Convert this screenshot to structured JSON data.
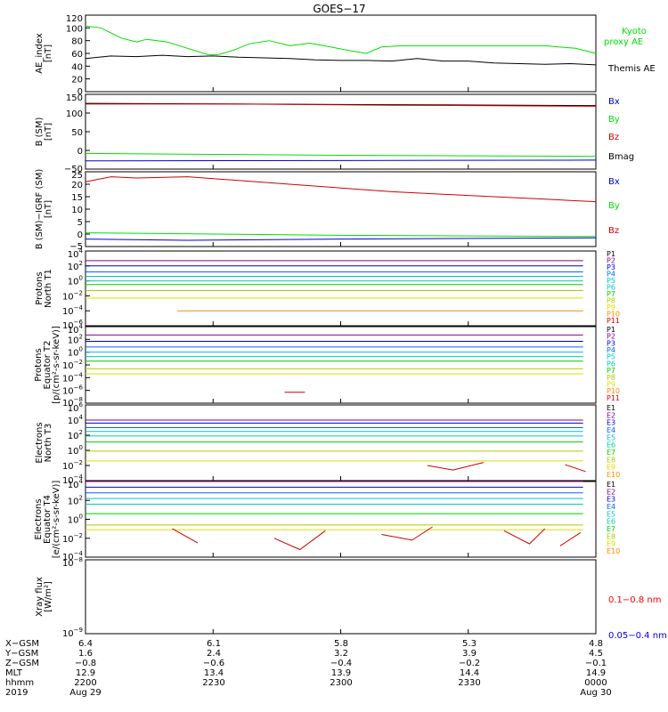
{
  "title": "GOES−17",
  "colors": {
    "black": "#000000",
    "green": "#00e000",
    "blue": "#0000d0",
    "red": "#d00000",
    "kyoto": "#00e000",
    "levels": [
      "#000000",
      "#880088",
      "#0000cc",
      "#0066ff",
      "#00bbdd",
      "#00ccaa",
      "#00cc00",
      "#aacc00",
      "#dddd00",
      "#ff8800",
      "#dd0000"
    ],
    "xray_long": "#ff0000",
    "xray_short": "#0000dd"
  },
  "panels": [
    {
      "id": "ae",
      "ylabel": [
        "AE_index",
        "[nT]"
      ],
      "ticks": [
        "120",
        "100",
        "80",
        "60",
        "40",
        "20",
        "0"
      ],
      "legend": [
        {
          "text": "Kyoto",
          "color": "#00e000"
        },
        {
          "text": "proxy AE",
          "color": "#00e000"
        },
        {
          "text": "Themis AE",
          "color": "#000000"
        }
      ]
    },
    {
      "id": "bsm",
      "ylabel": [
        "B (SM)",
        "[nT]"
      ],
      "ticks": [
        "150",
        "100",
        "50",
        "0",
        "−50"
      ],
      "legend": [
        {
          "text": "Bx",
          "color": "#0000d0"
        },
        {
          "text": "By",
          "color": "#00e000"
        },
        {
          "text": "Bz",
          "color": "#d00000"
        },
        {
          "text": "Bmag",
          "color": "#000000"
        }
      ]
    },
    {
      "id": "bigrf",
      "ylabel": [
        "B (SM)−IGRF (SM)",
        "[nT]"
      ],
      "ticks": [
        "25",
        "20",
        "15",
        "10",
        "5",
        "0",
        "−5"
      ],
      "legend": [
        {
          "text": "Bx",
          "color": "#0000d0"
        },
        {
          "text": "By",
          "color": "#00e000"
        },
        {
          "text": "Bz",
          "color": "#d00000"
        }
      ]
    },
    {
      "id": "pt1",
      "ylabel": [
        "Protons",
        "North T1"
      ],
      "ticks": [
        "10^4",
        "10^2",
        "10^0",
        "10^-2",
        "10^-4",
        "10^-6"
      ],
      "legend": [
        "P1",
        "P2",
        "P3",
        "P4",
        "P5",
        "P6",
        "P7",
        "P8",
        "P9",
        "P10",
        "P11"
      ]
    },
    {
      "id": "pt2",
      "ylabel": [
        "Protons",
        "Equator T2",
        "[p/(cm²-s-sr-keV)]"
      ],
      "ticks": [
        "10^4",
        "10^2",
        "10^0",
        "10^-2",
        "10^-4",
        "10^-6",
        "10^-8"
      ],
      "legend": [
        "P1",
        "P2",
        "P3",
        "P4",
        "P5",
        "P6",
        "P7",
        "P8",
        "P9",
        "P10",
        "P11"
      ]
    },
    {
      "id": "et3",
      "ylabel": [
        "Electrons",
        "North T3"
      ],
      "ticks": [
        "10^6",
        "10^4",
        "10^2",
        "10^0",
        "10^-2",
        "10^-4"
      ],
      "legend": [
        "E1",
        "E2",
        "E3",
        "E4",
        "E5",
        "E6",
        "E7",
        "E8",
        "E9",
        "E10"
      ]
    },
    {
      "id": "et4",
      "ylabel": [
        "Electrons",
        "Equator T4",
        "[e/(cm²-s-sr-keV)]"
      ],
      "ticks": [
        "10^4",
        "10^2",
        "10^0",
        "10^-2",
        "10^-4"
      ],
      "legend": [
        "E1",
        "E2",
        "E3",
        "E4",
        "E5",
        "E6",
        "E7",
        "E8",
        "E9",
        "E10"
      ]
    },
    {
      "id": "xray",
      "ylabel": [
        "Xray flux",
        "[W/m²]"
      ],
      "ticks": [
        "10^-8",
        "10^-9"
      ],
      "legend": [
        {
          "text": "0.1−0.8 nm",
          "color": "#ff0000"
        },
        {
          "text": "0.05−0.4 nm",
          "color": "#0000dd"
        }
      ]
    }
  ],
  "ephemeris": {
    "rows": [
      {
        "label": "X−GSM",
        "values": [
          "6.4",
          "6.1",
          "5.8",
          "5.3",
          "4.8"
        ]
      },
      {
        "label": "Y−GSM",
        "values": [
          "1.6",
          "2.4",
          "3.2",
          "3.9",
          "4.5"
        ]
      },
      {
        "label": "Z−GSM",
        "values": [
          "−0.8",
          "−0.6",
          "−0.4",
          "−0.2",
          "−0.1"
        ]
      },
      {
        "label": "MLT",
        "values": [
          "12.9",
          "13.4",
          "13.9",
          "14.4",
          "14.9"
        ]
      },
      {
        "label": "hhmm",
        "values": [
          "2200",
          "2230",
          "2300",
          "2330",
          "0000"
        ]
      },
      {
        "label": "2019",
        "values": [
          "Aug 29",
          "",
          "",
          "",
          "Aug 30"
        ]
      }
    ]
  },
  "chart_data": {
    "type": "line",
    "time_range": [
      "2019-08-29 22:00",
      "2019-08-30 00:00"
    ],
    "time_ticks": [
      "2200",
      "2230",
      "2300",
      "2330",
      "0000"
    ],
    "ae": {
      "ylim": [
        0,
        120
      ],
      "series": [
        {
          "name": "Kyoto proxy AE",
          "time": [
            0,
            0.03,
            0.07,
            0.1,
            0.12,
            0.16,
            0.2,
            0.24,
            0.26,
            0.29,
            0.32,
            0.36,
            0.4,
            0.44,
            0.48,
            0.52,
            0.55,
            0.58,
            0.62,
            0.7,
            0.8,
            0.9,
            0.96,
            1.0
          ],
          "values": [
            103,
            100,
            84,
            78,
            82,
            78,
            68,
            58,
            58,
            65,
            75,
            80,
            72,
            76,
            70,
            64,
            60,
            70,
            72,
            72,
            72,
            72,
            68,
            60
          ]
        },
        {
          "name": "Themis AE",
          "time": [
            0,
            0.05,
            0.1,
            0.15,
            0.2,
            0.25,
            0.3,
            0.35,
            0.4,
            0.45,
            0.5,
            0.55,
            0.6,
            0.65,
            0.7,
            0.75,
            0.8,
            0.85,
            0.9,
            0.95,
            1.0
          ],
          "values": [
            52,
            56,
            55,
            57,
            55,
            56,
            54,
            53,
            52,
            50,
            49,
            49,
            48,
            52,
            48,
            48,
            45,
            44,
            43,
            44,
            42
          ]
        }
      ]
    },
    "b_sm": {
      "ylim": [
        -50,
        150
      ],
      "series": [
        {
          "name": "Bmag",
          "time": [
            0,
            1
          ],
          "values": [
            126,
            120
          ]
        },
        {
          "name": "Bz",
          "time": [
            0,
            0.3,
            0.6,
            1
          ],
          "values": [
            124,
            124,
            121,
            118
          ]
        },
        {
          "name": "By",
          "time": [
            0,
            0.5,
            1
          ],
          "values": [
            -8,
            -13,
            -16
          ]
        },
        {
          "name": "Bx",
          "time": [
            0,
            1
          ],
          "values": [
            -28,
            -26
          ]
        }
      ]
    },
    "b_minus_igrf": {
      "ylim": [
        -5,
        25
      ],
      "series": [
        {
          "name": "Bz",
          "time": [
            0,
            0.05,
            0.1,
            0.2,
            0.3,
            0.4,
            0.5,
            0.6,
            0.7,
            0.8,
            0.9,
            1.0
          ],
          "values": [
            21,
            23,
            22.5,
            23,
            21.5,
            20,
            18.5,
            17,
            16,
            15,
            14,
            13
          ]
        },
        {
          "name": "By",
          "time": [
            0,
            0.5,
            1
          ],
          "values": [
            0.5,
            -0.5,
            -1
          ]
        },
        {
          "name": "Bx",
          "time": [
            0,
            0.2,
            0.5,
            1
          ],
          "values": [
            -2,
            -2.5,
            -2,
            -1.5
          ]
        }
      ]
    },
    "protons_t1": {
      "ylim_log10": [
        -6,
        4
      ],
      "series_log10": [
        {
          "name": "P1",
          "value": 2.7
        },
        {
          "name": "P2",
          "value": 2.0
        },
        {
          "name": "P3",
          "value": 1.2
        },
        {
          "name": "P4",
          "value": 0.6
        },
        {
          "name": "P5",
          "value": 0.0
        },
        {
          "name": "P6",
          "value": -0.5
        },
        {
          "name": "P7",
          "value": -1.3
        },
        {
          "name": "P8",
          "value": -2.3
        },
        {
          "name": "P9",
          "value": -4.0,
          "start": 0.18
        }
      ]
    },
    "protons_t2": {
      "ylim_log10": [
        -8,
        4
      ],
      "series_log10": [
        {
          "name": "P1",
          "value": 2.7
        },
        {
          "name": "P2",
          "value": 1.7
        },
        {
          "name": "P3",
          "value": 0.8
        },
        {
          "name": "P4",
          "value": 0.0
        },
        {
          "name": "P5",
          "value": -0.7
        },
        {
          "name": "P6",
          "value": -1.4
        },
        {
          "name": "P7",
          "value": -2.6
        },
        {
          "name": "P8",
          "value": -3.4
        }
      ],
      "segments": [
        {
          "name": "P10",
          "time": [
            0.39,
            0.43
          ],
          "value": -6.3
        }
      ]
    },
    "electrons_t3": {
      "ylim_log10": [
        -4,
        6
      ],
      "series_log10": [
        {
          "name": "E1",
          "value": 4.0
        },
        {
          "name": "E2",
          "value": 3.6
        },
        {
          "name": "E3",
          "value": 3.0
        },
        {
          "name": "E4",
          "value": 2.5
        },
        {
          "name": "E5",
          "value": 1.9
        },
        {
          "name": "E6",
          "value": 1.1
        },
        {
          "name": "E7",
          "value": -0.1
        },
        {
          "name": "E9",
          "value": -1.4
        }
      ],
      "segments": [
        {
          "name": "E10",
          "time": [
            0.67,
            0.72,
            0.78
          ],
          "values": [
            -2.0,
            -2.6,
            -1.6
          ]
        },
        {
          "name": "E10",
          "time": [
            0.94,
            0.98
          ],
          "values": [
            -1.9,
            -2.8
          ]
        }
      ]
    },
    "electrons_t4": {
      "ylim_log10": [
        -4,
        4
      ],
      "series_log10": [
        {
          "name": "E1",
          "value": 4.0
        },
        {
          "name": "E2",
          "value": 3.4
        },
        {
          "name": "E3",
          "value": 2.8
        },
        {
          "name": "E4",
          "value": 2.2
        },
        {
          "name": "E5",
          "value": 1.6
        },
        {
          "name": "E6",
          "value": 0.6
        },
        {
          "name": "E7",
          "value": -0.6
        },
        {
          "name": "E8",
          "value": -1.1
        }
      ],
      "segments": [
        {
          "name": "E10",
          "time": [
            0.17,
            0.22
          ],
          "values": [
            -1.0,
            -2.5
          ]
        },
        {
          "name": "E10",
          "time": [
            0.37,
            0.42,
            0.47
          ],
          "values": [
            -2.0,
            -3.2,
            -1.2
          ]
        },
        {
          "name": "E10",
          "time": [
            0.58,
            0.64,
            0.68
          ],
          "values": [
            -1.6,
            -2.2,
            -0.8
          ]
        },
        {
          "name": "E10",
          "time": [
            0.82,
            0.87,
            0.9
          ],
          "values": [
            -1.2,
            -2.6,
            -1.0
          ]
        },
        {
          "name": "E10",
          "time": [
            0.93,
            0.97
          ],
          "values": [
            -2.8,
            -1.4
          ]
        }
      ]
    },
    "xray": {
      "ylim_log10": [
        -9,
        -8
      ],
      "series": []
    }
  }
}
